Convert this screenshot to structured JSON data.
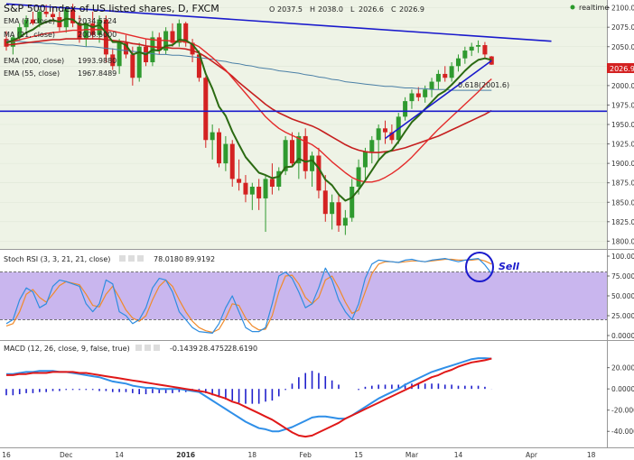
{
  "header": {
    "title": "S&P 500 index of US listed shares, D, FXCM",
    "ohlc": [
      {
        "k": "O",
        "v": "2037.5"
      },
      {
        "k": "H",
        "v": "2038.0"
      },
      {
        "k": "L",
        "v": "2026.6"
      },
      {
        "k": "C",
        "v": "2026.9"
      }
    ],
    "realtime": "realtime"
  },
  "indicators": [
    {
      "label": "EMA (7, close)",
      "value": "2034.5224"
    },
    {
      "label": "MA (21, close)",
      "value": "2008.6000"
    },
    {
      "label": "EMA (200, close)",
      "value": "1993.9880"
    },
    {
      "label": "EMA (55, close)",
      "value": "1967.8489"
    }
  ],
  "price_badge": "2026.9",
  "fib_label": "0.618(2001.6)",
  "stoch": {
    "label": "Stoch RSI (3, 3, 21, 21, close)",
    "v1": "78.0180",
    "v2": "89.9192",
    "annotation": "Sell"
  },
  "macd": {
    "label": "MACD (12, 26, close, 9, false, true)",
    "v1": "-0.1439",
    "v2": "28.4752",
    "v3": "28.6190"
  },
  "colors": {
    "up": "#2f9a2f",
    "down": "#d42222",
    "ema7": "#2b6a12",
    "ma21": "#e42a2a",
    "ema200": "#4a7fa6",
    "ema55": "#c61f1f",
    "trend": "#1a1acc",
    "stoch_k": "#2e8de0",
    "stoch_d": "#f08a2a",
    "rsi_band": "#c9b6ee",
    "macd": "#2f8fe8",
    "signal": "#e01818",
    "hist": "#2020cc"
  },
  "chart_data": [
    {
      "type": "candlestick",
      "title": "S&P 500 index of US listed shares, D, FXCM",
      "x_ticks": [
        "16",
        "Dec",
        "14",
        "2016",
        "18",
        "Feb",
        "15",
        "Mar",
        "14",
        "Apr",
        "18"
      ],
      "ylim": [
        1790,
        2110
      ],
      "y_ticks": [
        "1800.0",
        "1825.0",
        "1850.0",
        "1875.0",
        "1900.0",
        "1925.0",
        "1950.0",
        "1975.0",
        "2000.0",
        "2025.0",
        "2050.0",
        "2075.0",
        "2100.0"
      ],
      "candles": [
        [
          2060,
          2070,
          2045,
          2050
        ],
        [
          2050,
          2065,
          2040,
          2062
        ],
        [
          2062,
          2080,
          2058,
          2075
        ],
        [
          2075,
          2090,
          2070,
          2085
        ],
        [
          2085,
          2095,
          2078,
          2080
        ],
        [
          2080,
          2098,
          2075,
          2095
        ],
        [
          2095,
          2104,
          2088,
          2092
        ],
        [
          2092,
          2100,
          2082,
          2088
        ],
        [
          2088,
          2095,
          2070,
          2075
        ],
        [
          2075,
          2102,
          2068,
          2098
        ],
        [
          2098,
          2105,
          2075,
          2080
        ],
        [
          2080,
          2090,
          2055,
          2060
        ],
        [
          2060,
          2085,
          2050,
          2080
        ],
        [
          2080,
          2095,
          2060,
          2065
        ],
        [
          2065,
          2090,
          2055,
          2085
        ],
        [
          2085,
          2090,
          2030,
          2040
        ],
        [
          2040,
          2048,
          2020,
          2025
        ],
        [
          2025,
          2060,
          2015,
          2055
        ],
        [
          2055,
          2065,
          2035,
          2040
        ],
        [
          2040,
          2050,
          2000,
          2010
        ],
        [
          2010,
          2055,
          2005,
          2050
        ],
        [
          2050,
          2060,
          2025,
          2030
        ],
        [
          2030,
          2070,
          2025,
          2062
        ],
        [
          2062,
          2068,
          2040,
          2045
        ],
        [
          2045,
          2075,
          2040,
          2070
        ],
        [
          2070,
          2080,
          2050,
          2055
        ],
        [
          2055,
          2085,
          2050,
          2080
        ],
        [
          2080,
          2082,
          2050,
          2055
        ],
        [
          2055,
          2060,
          2030,
          2040
        ],
        [
          2040,
          2045,
          2005,
          2010
        ],
        [
          2010,
          2012,
          1920,
          1930
        ],
        [
          1930,
          1950,
          1905,
          1940
        ],
        [
          1940,
          1945,
          1895,
          1900
        ],
        [
          1900,
          1935,
          1890,
          1925
        ],
        [
          1925,
          1930,
          1870,
          1880
        ],
        [
          1880,
          1905,
          1865,
          1875
        ],
        [
          1875,
          1885,
          1850,
          1860
        ],
        [
          1860,
          1875,
          1840,
          1870
        ],
        [
          1870,
          1880,
          1840,
          1855
        ],
        [
          1855,
          1885,
          1812,
          1880
        ],
        [
          1880,
          1900,
          1860,
          1870
        ],
        [
          1870,
          1895,
          1865,
          1890
        ],
        [
          1890,
          1935,
          1885,
          1930
        ],
        [
          1930,
          1940,
          1895,
          1900
        ],
        [
          1900,
          1940,
          1880,
          1935
        ],
        [
          1935,
          1945,
          1880,
          1890
        ],
        [
          1890,
          1915,
          1870,
          1910
        ],
        [
          1910,
          1920,
          1855,
          1865
        ],
        [
          1865,
          1885,
          1825,
          1835
        ],
        [
          1835,
          1860,
          1815,
          1850
        ],
        [
          1850,
          1860,
          1812,
          1820
        ],
        [
          1820,
          1840,
          1808,
          1830
        ],
        [
          1830,
          1880,
          1825,
          1870
        ],
        [
          1870,
          1905,
          1860,
          1895
        ],
        [
          1895,
          1920,
          1880,
          1915
        ],
        [
          1915,
          1935,
          1900,
          1930
        ],
        [
          1930,
          1950,
          1905,
          1945
        ],
        [
          1945,
          1955,
          1925,
          1940
        ],
        [
          1940,
          1950,
          1925,
          1930
        ],
        [
          1930,
          1965,
          1925,
          1960
        ],
        [
          1960,
          1985,
          1955,
          1980
        ],
        [
          1980,
          1995,
          1970,
          1990
        ],
        [
          1990,
          1998,
          1980,
          1985
        ],
        [
          1985,
          2000,
          1978,
          1995
        ],
        [
          1995,
          2010,
          1985,
          2005
        ],
        [
          2005,
          2020,
          1995,
          2015
        ],
        [
          2015,
          2025,
          2005,
          2010
        ],
        [
          2010,
          2030,
          2005,
          2025
        ],
        [
          2025,
          2040,
          2018,
          2035
        ],
        [
          2035,
          2050,
          2028,
          2045
        ],
        [
          2045,
          2055,
          2038,
          2050
        ],
        [
          2050,
          2058,
          2042,
          2052
        ],
        [
          2052,
          2056,
          2035,
          2040
        ],
        [
          2037.5,
          2038.0,
          2026.6,
          2026.9
        ]
      ],
      "ema7": [
        2055,
        2058,
        2062,
        2068,
        2072,
        2078,
        2082,
        2084,
        2082,
        2086,
        2085,
        2078,
        2079,
        2075,
        2078,
        2068,
        2056,
        2056,
        2052,
        2040,
        2043,
        2040,
        2046,
        2045,
        2051,
        2052,
        2059,
        2058,
        2053,
        2042,
        2015,
        1996,
        1973,
        1961,
        1941,
        1924,
        1908,
        1898,
        1888,
        1885,
        1881,
        1883,
        1895,
        1896,
        1906,
        1902,
        1904,
        1894,
        1879,
        1872,
        1860,
        1852,
        1856,
        1866,
        1878,
        1891,
        1904,
        1913,
        1917,
        1928,
        1941,
        1953,
        1961,
        1970,
        1979,
        1988,
        1993,
        2001,
        2010,
        2019,
        2027,
        2033,
        2035,
        2033
      ],
      "ma21": [
        2055,
        2057,
        2059,
        2061,
        2063,
        2065,
        2067,
        2068,
        2069,
        2070,
        2071,
        2071,
        2072,
        2072,
        2072,
        2072,
        2070,
        2068,
        2066,
        2064,
        2062,
        2060,
        2059,
        2058,
        2058,
        2057,
        2057,
        2056,
        2054,
        2050,
        2043,
        2036,
        2028,
        2020,
        2010,
        2000,
        1990,
        1980,
        1970,
        1960,
        1952,
        1945,
        1940,
        1936,
        1932,
        1928,
        1924,
        1918,
        1910,
        1902,
        1895,
        1888,
        1882,
        1878,
        1876,
        1876,
        1878,
        1882,
        1887,
        1893,
        1900,
        1908,
        1917,
        1926,
        1935,
        1944,
        1952,
        1960,
        1968,
        1976,
        1984,
        1992,
        2001,
        2008.6
      ],
      "ema55": [
        2052,
        2053,
        2054,
        2055,
        2056,
        2057,
        2058,
        2059,
        2059,
        2060,
        2060,
        2060,
        2060,
        2060,
        2060,
        2059,
        2058,
        2057,
        2056,
        2054,
        2053,
        2051,
        2050,
        2049,
        2049,
        2048,
        2048,
        2047,
        2045,
        2042,
        2037,
        2031,
        2025,
        2019,
        2012,
        2004,
        1997,
        1990,
        1983,
        1976,
        1970,
        1965,
        1961,
        1957,
        1954,
        1951,
        1948,
        1944,
        1939,
        1934,
        1929,
        1924,
        1920,
        1917,
        1915,
        1914,
        1914,
        1915,
        1916,
        1918,
        1920,
        1923,
        1926,
        1929,
        1932,
        1935,
        1939,
        1943,
        1947,
        1951,
        1955,
        1959,
        1963,
        1967.8
      ],
      "ema200": [
        2058,
        2057,
        2057,
        2056,
        2055,
        2055,
        2054,
        2054,
        2053,
        2052,
        2052,
        2051,
        2050,
        2050,
        2049,
        2048,
        2047,
        2046,
        2045,
        2044,
        2043,
        2042,
        2041,
        2040,
        2040,
        2039,
        2039,
        2038,
        2037,
        2036,
        2035,
        2034,
        2032,
        2031,
        2029,
        2028,
        2026,
        2025,
        2023,
        2022,
        2021,
        2019,
        2018,
        2017,
        2016,
        2014,
        2013,
        2011,
        2010,
        2008,
        2007,
        2005,
        2004,
        2003,
        2002,
        2001,
        2000,
        1999,
        1999,
        1998,
        1997,
        1997,
        1996,
        1996,
        1995,
        1995,
        1995,
        1994,
        1994,
        1994,
        1994,
        1994,
        1994,
        1994
      ],
      "resistance_line": [
        [
          0,
          2105
        ],
        [
          82,
          2057
        ]
      ],
      "support_horizontal": 1967,
      "uptrend_line": [
        [
          57,
          1932
        ],
        [
          73,
          2032
        ]
      ],
      "fib_level": 2001.6
    },
    {
      "type": "line",
      "title": "Stoch RSI (3, 3, 21, 21, close)",
      "ylim": [
        0,
        100
      ],
      "y_ticks": [
        "0.0000",
        "25.0000",
        "50.0000",
        "75.0000",
        "100.0000"
      ],
      "band": [
        20,
        80
      ],
      "series": [
        {
          "name": "K",
          "values": [
            15,
            20,
            45,
            60,
            55,
            35,
            40,
            62,
            70,
            68,
            65,
            62,
            40,
            30,
            40,
            70,
            65,
            30,
            25,
            15,
            20,
            35,
            60,
            72,
            70,
            55,
            30,
            20,
            10,
            5,
            4,
            3,
            15,
            35,
            50,
            30,
            10,
            5,
            5,
            10,
            40,
            75,
            80,
            72,
            55,
            35,
            40,
            60,
            85,
            70,
            45,
            30,
            20,
            40,
            72,
            90,
            95,
            94,
            93,
            92,
            95,
            96,
            94,
            93,
            95,
            96,
            97,
            95,
            93,
            95,
            96,
            97,
            89,
            78
          ]
        },
        {
          "name": "D",
          "values": [
            12,
            15,
            30,
            52,
            58,
            48,
            42,
            52,
            63,
            68,
            66,
            64,
            52,
            38,
            36,
            52,
            62,
            48,
            32,
            22,
            18,
            25,
            45,
            62,
            70,
            62,
            45,
            30,
            18,
            10,
            6,
            4,
            8,
            22,
            40,
            38,
            22,
            12,
            7,
            8,
            25,
            55,
            75,
            76,
            65,
            48,
            40,
            48,
            70,
            75,
            60,
            42,
            28,
            32,
            55,
            78,
            90,
            93,
            93,
            92,
            93,
            94,
            94,
            93,
            94,
            95,
            96,
            96,
            95,
            95,
            95,
            96,
            94,
            90
          ]
        }
      ]
    },
    {
      "type": "line",
      "title": "MACD (12, 26, close, 9, false, true)",
      "ylim": [
        -50,
        35
      ],
      "y_ticks": [
        "-40.0000",
        "-20.0000",
        "0.0000",
        "20.0000"
      ],
      "macd": [
        14,
        14,
        15,
        16,
        16,
        17,
        17,
        17,
        16,
        16,
        15,
        14,
        13,
        12,
        11,
        9,
        7,
        6,
        5,
        3,
        2,
        1,
        1,
        0,
        0,
        0,
        0,
        -1,
        -2,
        -3,
        -7,
        -11,
        -15,
        -19,
        -23,
        -27,
        -31,
        -34,
        -37,
        -38,
        -40,
        -40,
        -38,
        -36,
        -33,
        -30,
        -27,
        -26,
        -26,
        -27,
        -28,
        -28,
        -25,
        -21,
        -17,
        -13,
        -9,
        -6,
        -3,
        0,
        4,
        7,
        10,
        13,
        16,
        18,
        20,
        22,
        24,
        26,
        28,
        29,
        29,
        28.5
      ],
      "signal": [
        13,
        13,
        14,
        14,
        15,
        15,
        15,
        16,
        16,
        16,
        16,
        15,
        15,
        14,
        13,
        12,
        11,
        10,
        9,
        8,
        7,
        6,
        5,
        4,
        3,
        2,
        1,
        0,
        -1,
        -2,
        -3,
        -5,
        -7,
        -9,
        -12,
        -14,
        -17,
        -20,
        -23,
        -26,
        -29,
        -33,
        -37,
        -41,
        -44,
        -45,
        -44,
        -41,
        -38,
        -35,
        -32,
        -28,
        -25,
        -22,
        -19,
        -16,
        -13,
        -10,
        -7,
        -4,
        -1,
        2,
        5,
        8,
        11,
        13,
        16,
        18,
        21,
        23,
        25,
        26,
        27,
        28.6
      ],
      "histogram": [
        -6,
        -6,
        -5,
        -4,
        -4,
        -3,
        -3,
        -2,
        -2,
        -1,
        -1,
        -1,
        -1,
        -1,
        -2,
        -2,
        -3,
        -3,
        -3,
        -4,
        -5,
        -5,
        -4,
        -4,
        -4,
        -4,
        -3,
        -3,
        -1,
        -1,
        -4,
        -6,
        -8,
        -10,
        -11,
        -13,
        -14,
        -14,
        -14,
        -12,
        -11,
        -7,
        -1,
        5,
        11,
        15,
        17,
        15,
        12,
        8,
        4,
        0,
        0,
        -1,
        2,
        3,
        4,
        4,
        4,
        4,
        5,
        5,
        5,
        5,
        5,
        5,
        4,
        4,
        3,
        3,
        3,
        3,
        2,
        -0.1
      ]
    }
  ]
}
